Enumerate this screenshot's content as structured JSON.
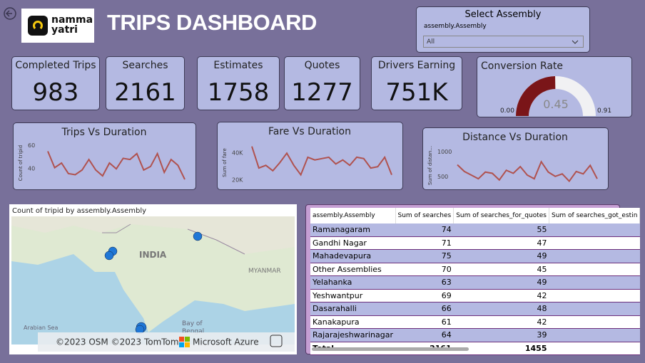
{
  "header": {
    "logo": "namma\nyatri",
    "title": "TRIPS DASHBOARD"
  },
  "slicer": {
    "title": "Select Assembly",
    "field": "assembly.Assembly",
    "selected": "All"
  },
  "kpis": [
    {
      "label": "Completed Trips",
      "value": 983
    },
    {
      "label": "Searches",
      "value": 2161
    },
    {
      "label": "Estimates",
      "value": 1758
    },
    {
      "label": "Quotes",
      "value": 1277
    },
    {
      "label": "Drivers Earning",
      "value": 751000,
      "value_label": "751K"
    }
  ],
  "chart_data": [
    {
      "type": "gauge",
      "title": "Conversion Rate",
      "value": 0.45,
      "min": {
        "value": 0,
        "label": "0.00"
      },
      "max": 0.91,
      "color": "#7a1518",
      "track_color": "#f1f1f3"
    },
    {
      "type": "line",
      "title": "Trips Vs Duration",
      "y_label": "Count of tripid",
      "color": "#b0524f",
      "values": [
        55,
        41,
        45,
        36,
        35,
        39,
        48,
        39,
        34,
        45,
        40,
        49,
        48,
        53,
        39,
        42,
        53,
        37,
        48,
        43,
        31
      ],
      "ylim": [
        28,
        62
      ],
      "yticks": [
        40,
        60
      ]
    },
    {
      "type": "line",
      "title": "Fare Vs Duration",
      "y_label": "Sum of fare",
      "color": "#b0524f",
      "values": [
        45000,
        29000,
        31000,
        27000,
        33000,
        40000,
        31000,
        24000,
        37000,
        35000,
        36000,
        37000,
        32000,
        35000,
        31000,
        37000,
        36000,
        29000,
        30000,
        37000,
        24000
      ],
      "ylim": [
        18000,
        48000
      ],
      "yticks": [
        {
          "value": 20000,
          "label": "20K"
        },
        {
          "value": 40000,
          "label": "40K"
        }
      ]
    },
    {
      "type": "line",
      "title": "Distance Vs Duration",
      "y_label": "Sum of distan...",
      "color": "#b0524f",
      "values": [
        744,
        610,
        537,
        463,
        598,
        573,
        439,
        634,
        573,
        707,
        537,
        463,
        805,
        598,
        512,
        561,
        415,
        610,
        561,
        732,
        463
      ],
      "ylim": [
        380,
        1080
      ],
      "yticks": [
        500,
        1000
      ]
    }
  ],
  "map": {
    "title": "Count of tripid by assembly.Assembly",
    "labels": [
      "INDIA",
      "MYANMAR",
      "Arabian Sea",
      "Bay of",
      "Bengal"
    ],
    "attribution": "©2023 OSM ©2023 TomTom",
    "brand": "Microsoft Azure"
  },
  "table": {
    "columns": [
      "assembly.Assembly",
      "Sum of searches",
      "Sum of searches_for_quotes",
      "Sum of searches_got_estin"
    ],
    "rows": [
      [
        "Ramanagaram",
        74,
        55
      ],
      [
        "Gandhi Nagar",
        71,
        47
      ],
      [
        "Mahadevapura",
        75,
        49
      ],
      [
        "Other Assemblies",
        70,
        45
      ],
      [
        "Yelahanka",
        63,
        49
      ],
      [
        "Yeshwantpur",
        69,
        42
      ],
      [
        "Dasarahalli",
        66,
        48
      ],
      [
        "Kanakapura",
        61,
        42
      ],
      [
        "Rajarajeshwarinagar",
        64,
        39
      ]
    ],
    "total": [
      "Total",
      2161,
      1455
    ]
  }
}
